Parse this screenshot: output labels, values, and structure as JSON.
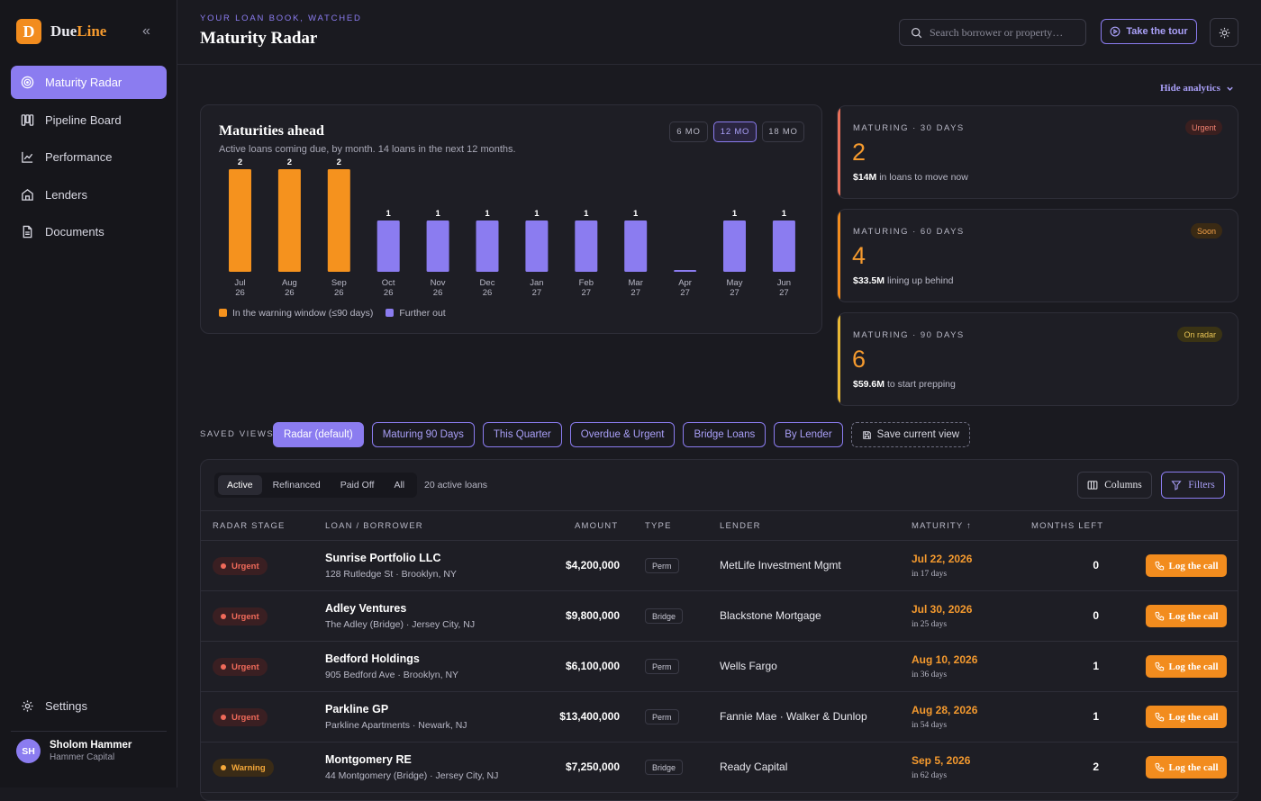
{
  "brand": {
    "name_a": "Due",
    "name_b": "Line",
    "logo_letter": "D"
  },
  "sidebar": {
    "items": [
      {
        "label": "Maturity Radar",
        "icon": "radar-icon",
        "active": true
      },
      {
        "label": "Pipeline Board",
        "icon": "board-icon"
      },
      {
        "label": "Performance",
        "icon": "chart-line-icon"
      },
      {
        "label": "Lenders",
        "icon": "bank-icon"
      },
      {
        "label": "Documents",
        "icon": "document-icon"
      }
    ],
    "settings_label": "Settings"
  },
  "user": {
    "initials": "SH",
    "name": "Sholom Hammer",
    "org": "Hammer Capital"
  },
  "header": {
    "eyebrow": "YOUR LOAN BOOK, WATCHED",
    "title": "Maturity Radar",
    "search_placeholder": "Search borrower or property…",
    "tour_label": "Take the tour"
  },
  "analytics": {
    "hide_label": "Hide analytics"
  },
  "chart_card": {
    "title": "Maturities ahead",
    "subtitle": "Active loans coming due, by month. 14 loans in the next 12 months.",
    "ranges": [
      "6 MO",
      "12 MO",
      "18 MO"
    ],
    "active_range": "12 MO",
    "legend": [
      "In the warning window (≤90 days)",
      "Further out"
    ]
  },
  "chart_data": {
    "type": "bar",
    "categories": [
      "Jul 26",
      "Aug 26",
      "Sep 26",
      "Oct 26",
      "Nov 26",
      "Dec 26",
      "Jan 27",
      "Feb 27",
      "Mar 27",
      "Apr 27",
      "May 27",
      "Jun 27"
    ],
    "series": [
      {
        "name": "In the warning window (≤90 days)",
        "values": [
          2,
          2,
          2,
          0,
          0,
          0,
          0,
          0,
          0,
          0,
          0,
          0
        ],
        "color": "#f5921e"
      },
      {
        "name": "Further out",
        "values": [
          0,
          0,
          0,
          1,
          1,
          1,
          1,
          1,
          1,
          0,
          1,
          1
        ],
        "color": "#8b7cf0"
      }
    ],
    "value_labels": [
      "2",
      "2",
      "2",
      "1",
      "1",
      "1",
      "1",
      "1",
      "1",
      "",
      "1",
      "1"
    ],
    "ylim": [
      0,
      2
    ],
    "grid": false,
    "legend_position": "bottom-left"
  },
  "stats": [
    {
      "label": "MATURING · 30 DAYS",
      "value": "2",
      "amount": "$14M",
      "desc": "in loans to move now",
      "badge": "Urgent",
      "accent": "#e8705a",
      "badge_bg": "#3a1f1f",
      "badge_fg": "#f08070"
    },
    {
      "label": "MATURING · 60 DAYS",
      "value": "4",
      "amount": "$33.5M",
      "desc": "lining up behind",
      "badge": "Soon",
      "accent": "#f28c1e",
      "badge_bg": "#3a2a14",
      "badge_fg": "#f5a24a"
    },
    {
      "label": "MATURING · 90 DAYS",
      "value": "6",
      "amount": "$59.6M",
      "desc": "to start prepping",
      "badge": "On radar",
      "accent": "#e8b834",
      "badge_bg": "#3a3314",
      "badge_fg": "#e8c454"
    }
  ],
  "views": {
    "label": "SAVED VIEWS",
    "items": [
      "Radar (default)",
      "Maturing 90 Days",
      "This Quarter",
      "Overdue & Urgent",
      "Bridge Loans",
      "By Lender"
    ],
    "save_label": "Save current view"
  },
  "table": {
    "tabs": [
      "Active",
      "Refinanced",
      "Paid Off",
      "All"
    ],
    "count_label": "20 active loans",
    "columns_label": "Columns",
    "filters_label": "Filters",
    "headers": [
      "RADAR STAGE",
      "LOAN / BORROWER",
      "AMOUNT",
      "TYPE",
      "LENDER",
      "MATURITY ↑",
      "MONTHS LEFT"
    ],
    "action_label": "Log the call",
    "rows": [
      {
        "stage": "Urgent",
        "name": "Sunrise Portfolio LLC",
        "addr": "128 Rutledge St · Brooklyn, NY",
        "amount": "$4,200,000",
        "type": "Perm",
        "lender": "MetLife Investment Mgmt",
        "maturity": "Jul 22, 2026",
        "in": "in 17 days",
        "months": "0"
      },
      {
        "stage": "Urgent",
        "name": "Adley Ventures",
        "addr": "The Adley (Bridge) · Jersey City, NJ",
        "amount": "$9,800,000",
        "type": "Bridge",
        "lender": "Blackstone Mortgage",
        "maturity": "Jul 30, 2026",
        "in": "in 25 days",
        "months": "0"
      },
      {
        "stage": "Urgent",
        "name": "Bedford Holdings",
        "addr": "905 Bedford Ave · Brooklyn, NY",
        "amount": "$6,100,000",
        "type": "Perm",
        "lender": "Wells Fargo",
        "maturity": "Aug 10, 2026",
        "in": "in 36 days",
        "months": "1"
      },
      {
        "stage": "Urgent",
        "name": "Parkline GP",
        "addr": "Parkline Apartments · Newark, NJ",
        "amount": "$13,400,000",
        "type": "Perm",
        "lender": "Fannie Mae · Walker & Dunlop",
        "maturity": "Aug 28, 2026",
        "in": "in 54 days",
        "months": "1"
      },
      {
        "stage": "Warning",
        "name": "Montgomery RE",
        "addr": "44 Montgomery (Bridge) · Jersey City, NJ",
        "amount": "$7,250,000",
        "type": "Bridge",
        "lender": "Ready Capital",
        "maturity": "Sep 5, 2026",
        "in": "in 62 days",
        "months": "2"
      }
    ]
  },
  "colors": {
    "accent": "#8b7cf0",
    "orange": "#f28c1e",
    "urgent": "#f06a5a",
    "warning": "#f5a83a"
  }
}
